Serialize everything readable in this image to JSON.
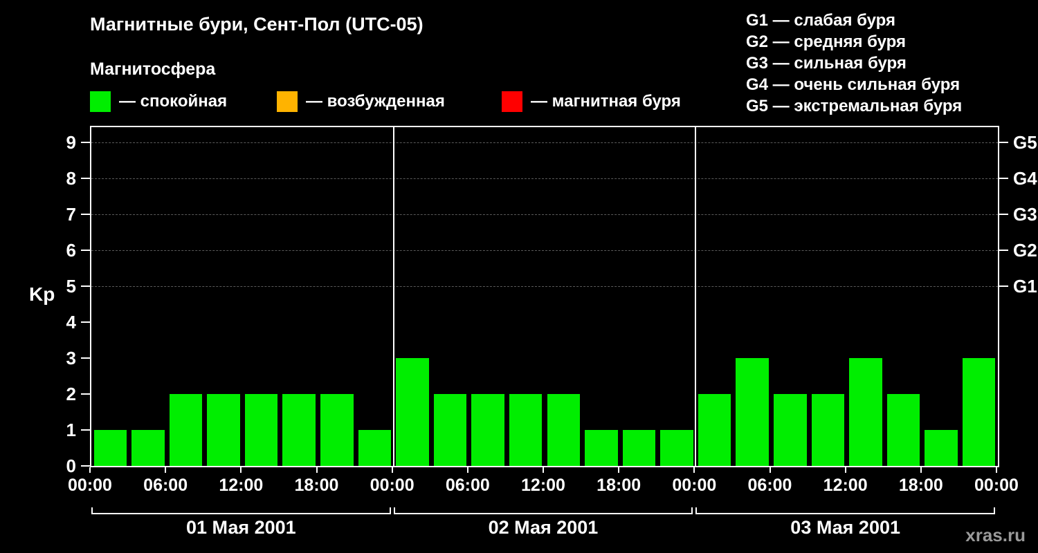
{
  "title": "Магнитные бури, Сент-Пол (UTC-05)",
  "subtitle": "Магнитосфера",
  "legend": {
    "items": [
      {
        "label": "— спокойная",
        "color": "#00ee00"
      },
      {
        "label": "— возбужденная",
        "color": "#ffb300"
      },
      {
        "label": "— магнитная буря",
        "color": "#ff0000"
      }
    ]
  },
  "storm_scale": [
    "G1 — слабая буря",
    "G2 — средняя буря",
    "G3 — сильная буря",
    "G4 — очень сильная буря",
    "G5 — экстремальная буря"
  ],
  "watermark": "xras.ru",
  "chart_data": {
    "type": "bar",
    "title": "Магнитные бури, Сент-Пол (UTC-05)",
    "ylabel": "Kp",
    "ylim": [
      0,
      9
    ],
    "yticks": [
      0,
      1,
      2,
      3,
      4,
      5,
      6,
      7,
      8,
      9
    ],
    "grid_values": [
      5,
      6,
      7,
      8,
      9
    ],
    "bar_color": "#00ee00",
    "x_hour_labels": [
      "00:00",
      "06:00",
      "12:00",
      "18:00"
    ],
    "x_final_label": "00:00",
    "right_axis_labels": [
      {
        "value": 5,
        "label": "G1"
      },
      {
        "value": 6,
        "label": "G2"
      },
      {
        "value": 7,
        "label": "G3"
      },
      {
        "value": 8,
        "label": "G4"
      },
      {
        "value": 9,
        "label": "G5"
      }
    ],
    "days": [
      {
        "date": "01 Мая 2001",
        "values": [
          1,
          1,
          2,
          2,
          2,
          2,
          2,
          1
        ]
      },
      {
        "date": "02 Мая 2001",
        "values": [
          3,
          2,
          2,
          2,
          2,
          1,
          1,
          1
        ]
      },
      {
        "date": "03 Мая 2001",
        "values": [
          2,
          3,
          2,
          2,
          3,
          2,
          1,
          3
        ]
      }
    ]
  }
}
